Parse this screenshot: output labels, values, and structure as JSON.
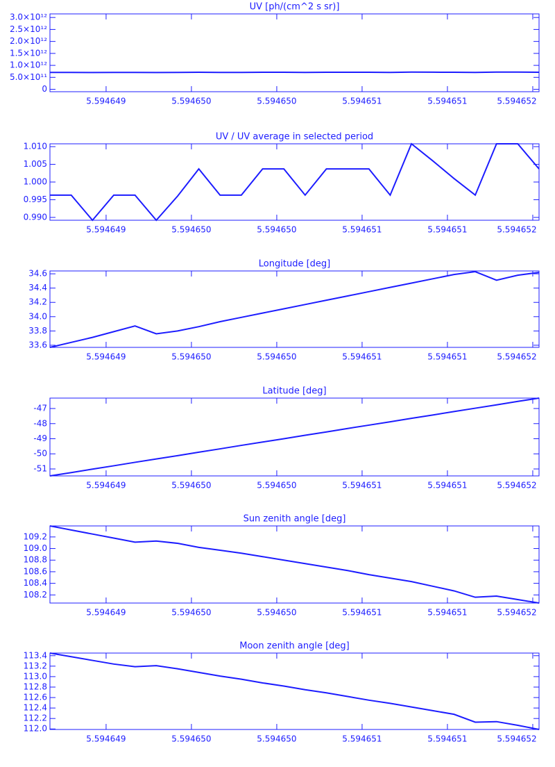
{
  "chart_data": [
    {
      "type": "line",
      "title": "UV [ph/(cm^2 s sr)]",
      "color": "#1c1cff",
      "x": [
        5.594648671,
        5.5946487956,
        5.5946489202,
        5.5946490448,
        5.5946491694,
        5.594649294,
        5.5946494186,
        5.5946495432,
        5.5946496678,
        5.5946497924,
        5.594649917,
        5.5946500416,
        5.5946501662,
        5.5946502908,
        5.5946504154,
        5.59465054,
        5.5946506646,
        5.5946507892,
        5.5946509138,
        5.5946510384,
        5.594651163,
        5.5946512876,
        5.5946514122,
        5.5946515368
      ],
      "values": [
        707000000000,
        707000000000,
        702000000000,
        707000000000,
        707000000000,
        702000000000,
        707000000000,
        713000000000,
        707000000000,
        707000000000,
        713000000000,
        713000000000,
        707000000000,
        713000000000,
        713000000000,
        713000000000,
        707000000000,
        718000000000,
        715000000000,
        711000000000,
        707000000000,
        718000000000,
        718000000000,
        713000000000
      ],
      "xlim": [
        5.594648671,
        5.5946515368
      ],
      "xticks": [
        5.594649,
        {
          "value": 5.5946495,
          "label": "5.594650"
        },
        {
          "value": 5.59465,
          "label": "5.594650"
        },
        {
          "value": 5.5946505,
          "label": "5.594651"
        },
        5.594651,
        {
          "value": 5.5946515,
          "label": "5.594652"
        }
      ],
      "ylim": [
        -100000000000,
        3150000000000
      ],
      "yticks": [
        0,
        {
          "value": 500000000000,
          "label": "5.0×10¹¹"
        },
        {
          "value": 1000000000000,
          "label": "1.0×10¹²"
        },
        {
          "value": 1500000000000,
          "label": "1.5×10¹²"
        },
        {
          "value": 2000000000000,
          "label": "2.0×10¹²"
        },
        {
          "value": 2500000000000,
          "label": "2.5×10¹²"
        },
        {
          "value": 3000000000000,
          "label": "3.0×10¹²"
        }
      ]
    },
    {
      "type": "line",
      "title": "UV / UV average in selected period",
      "color": "#1c1cff",
      "x": [
        5.594648671,
        5.5946487956,
        5.5946489202,
        5.5946490448,
        5.5946491694,
        5.594649294,
        5.5946494186,
        5.5946495432,
        5.5946496678,
        5.5946497924,
        5.594649917,
        5.5946500416,
        5.5946501662,
        5.5946502908,
        5.5946504154,
        5.59465054,
        5.5946506646,
        5.5946507892,
        5.5946509138,
        5.5946510384,
        5.594651163,
        5.5946512876,
        5.5946514122,
        5.5946515368
      ],
      "values": [
        0.9963,
        0.9963,
        0.9892,
        0.9963,
        0.9963,
        0.9892,
        0.996,
        1.0037,
        0.9963,
        0.9963,
        1.0037,
        1.0037,
        0.9963,
        1.0037,
        1.0037,
        1.0037,
        0.9963,
        1.0108,
        1.006,
        1.001,
        0.9963,
        1.0108,
        1.0108,
        1.0037
      ],
      "xlim": [
        5.594648671,
        5.5946515368
      ],
      "xticks": [
        5.594649,
        {
          "value": 5.5946495,
          "label": "5.594650"
        },
        {
          "value": 5.59465,
          "label": "5.594650"
        },
        {
          "value": 5.5946505,
          "label": "5.594651"
        },
        5.594651,
        {
          "value": 5.5946515,
          "label": "5.594652"
        }
      ],
      "ylim": [
        0.9892,
        1.0108
      ],
      "yticks": [
        {
          "value": 0.99,
          "label": "0.990"
        },
        0.995,
        {
          "value": 1,
          "label": "1.000"
        },
        1.005,
        {
          "value": 1.01,
          "label": "1.010"
        }
      ]
    },
    {
      "type": "line",
      "title": "Longitude [deg]",
      "color": "#1c1cff",
      "x": [
        5.594648671,
        5.5946487956,
        5.5946489202,
        5.5946490448,
        5.5946491694,
        5.594649294,
        5.5946494186,
        5.5946495432,
        5.5946496678,
        5.5946497924,
        5.594649917,
        5.5946500416,
        5.5946501662,
        5.5946502908,
        5.5946504154,
        5.59465054,
        5.5946506646,
        5.5946507892,
        5.5946509138,
        5.5946510384,
        5.594651163,
        5.5946512876,
        5.5946514122,
        5.5946515368
      ],
      "values": [
        33.57,
        33.64,
        33.71,
        33.79,
        33.87,
        33.76,
        33.8,
        33.86,
        33.93,
        33.99,
        34.05,
        34.11,
        34.17,
        34.23,
        34.29,
        34.35,
        34.41,
        34.47,
        34.53,
        34.59,
        34.63,
        34.51,
        34.58,
        34.62
      ],
      "xlim": [
        5.594648671,
        5.5946515368
      ],
      "xticks": [
        5.594649,
        {
          "value": 5.5946495,
          "label": "5.594650"
        },
        {
          "value": 5.59465,
          "label": "5.594650"
        },
        {
          "value": 5.5946505,
          "label": "5.594651"
        },
        5.594651,
        {
          "value": 5.5946515,
          "label": "5.594652"
        }
      ],
      "ylim": [
        33.57,
        34.64
      ],
      "yticks": [
        33.6,
        33.8,
        {
          "value": 34,
          "label": "34.0"
        },
        34.2,
        34.4,
        34.6
      ]
    },
    {
      "type": "line",
      "title": "Latitude [deg]",
      "color": "#1c1cff",
      "x": [
        5.594648671,
        5.5946487956,
        5.5946489202,
        5.5946490448,
        5.5946491694,
        5.594649294,
        5.5946494186,
        5.5946495432,
        5.5946496678,
        5.5946497924,
        5.594649917,
        5.5946500416,
        5.5946501662,
        5.5946502908,
        5.5946504154,
        5.59465054,
        5.5946506646,
        5.5946507892,
        5.5946509138,
        5.5946510384,
        5.594651163,
        5.5946512876,
        5.5946514122,
        5.5946515368
      ],
      "values": [
        -51.46,
        -51.24,
        -51.01,
        -50.79,
        -50.56,
        -50.34,
        -50.12,
        -49.89,
        -49.67,
        -49.44,
        -49.22,
        -49.0,
        -48.77,
        -48.55,
        -48.32,
        -48.1,
        -47.88,
        -47.65,
        -47.43,
        -47.2,
        -46.98,
        -46.76,
        -46.53,
        -46.31
      ],
      "xlim": [
        5.594648671,
        5.5946515368
      ],
      "xticks": [
        5.594649,
        {
          "value": 5.5946495,
          "label": "5.594650"
        },
        {
          "value": 5.59465,
          "label": "5.594650"
        },
        {
          "value": 5.5946505,
          "label": "5.594651"
        },
        5.594651,
        {
          "value": 5.5946515,
          "label": "5.594652"
        }
      ],
      "ylim": [
        -51.46,
        -46.31
      ],
      "yticks": [
        -51,
        -50,
        -49,
        -48,
        -47
      ]
    },
    {
      "type": "line",
      "title": "Sun zenith angle [deg]",
      "color": "#1c1cff",
      "x": [
        5.594648671,
        5.5946487956,
        5.5946489202,
        5.5946490448,
        5.5946491694,
        5.594649294,
        5.5946494186,
        5.5946495432,
        5.5946496678,
        5.5946497924,
        5.594649917,
        5.5946500416,
        5.5946501662,
        5.5946502908,
        5.5946504154,
        5.59465054,
        5.5946506646,
        5.5946507892,
        5.5946509138,
        5.5946510384,
        5.594651163,
        5.5946512876,
        5.5946514122,
        5.5946515368
      ],
      "values": [
        109.39,
        109.32,
        109.25,
        109.18,
        109.11,
        109.13,
        109.09,
        109.02,
        108.97,
        108.92,
        108.86,
        108.8,
        108.74,
        108.68,
        108.62,
        108.55,
        108.49,
        108.43,
        108.35,
        108.27,
        108.16,
        108.18,
        108.12,
        108.06
      ],
      "xlim": [
        5.594648671,
        5.5946515368
      ],
      "xticks": [
        5.594649,
        {
          "value": 5.5946495,
          "label": "5.594650"
        },
        {
          "value": 5.59465,
          "label": "5.594650"
        },
        {
          "value": 5.5946505,
          "label": "5.594651"
        },
        5.594651,
        {
          "value": 5.5946515,
          "label": "5.594652"
        }
      ],
      "ylim": [
        108.06,
        109.39
      ],
      "yticks": [
        108.2,
        108.4,
        108.6,
        108.8,
        {
          "value": 109,
          "label": "109.0"
        },
        109.2
      ]
    },
    {
      "type": "line",
      "title": "Moon zenith angle [deg]",
      "color": "#1c1cff",
      "x": [
        5.594648671,
        5.5946487956,
        5.5946489202,
        5.5946490448,
        5.5946491694,
        5.594649294,
        5.5946494186,
        5.5946495432,
        5.5946496678,
        5.5946497924,
        5.594649917,
        5.5946500416,
        5.5946501662,
        5.5946502908,
        5.5946504154,
        5.59465054,
        5.5946506646,
        5.5946507892,
        5.5946509138,
        5.5946510384,
        5.594651163,
        5.5946512876,
        5.5946514122,
        5.5946515368
      ],
      "values": [
        113.45,
        113.38,
        113.31,
        113.24,
        113.19,
        113.21,
        113.15,
        113.08,
        113.01,
        112.95,
        112.88,
        112.82,
        112.75,
        112.69,
        112.62,
        112.55,
        112.49,
        112.42,
        112.35,
        112.28,
        112.13,
        112.14,
        112.07,
        111.99
      ],
      "xlim": [
        5.594648671,
        5.5946515368
      ],
      "xticks": [
        5.594649,
        {
          "value": 5.5946495,
          "label": "5.594650"
        },
        {
          "value": 5.59465,
          "label": "5.594650"
        },
        {
          "value": 5.5946505,
          "label": "5.594651"
        },
        5.594651,
        {
          "value": 5.5946515,
          "label": "5.594652"
        }
      ],
      "ylim": [
        111.99,
        113.45
      ],
      "yticks": [
        {
          "value": 112,
          "label": "112.0"
        },
        112.2,
        112.4,
        112.6,
        112.8,
        {
          "value": 113,
          "label": "113.0"
        },
        113.2,
        113.4
      ]
    }
  ]
}
